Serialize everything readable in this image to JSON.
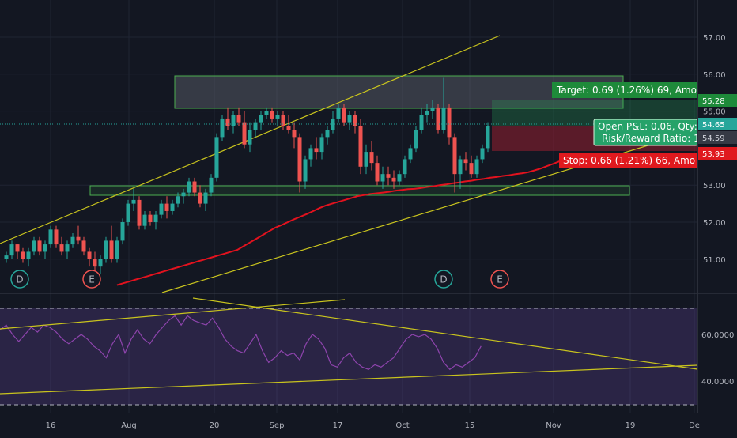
{
  "chart_data": {
    "type": "candlestick",
    "price_axis": {
      "ticks": [
        "57.00",
        "56.00",
        "55.00",
        "53.00",
        "52.00",
        "51.00"
      ],
      "ylim": [
        50.3,
        57.6
      ]
    },
    "time_axis": {
      "ticks": [
        "16",
        "Aug",
        "20",
        "Sep",
        "17",
        "Oct",
        "15",
        "Nov",
        "19",
        "De"
      ]
    },
    "price_labels": {
      "target": "55.28",
      "last": "54.65",
      "entry": "54.59",
      "stop": "53.93"
    },
    "orders": {
      "target_text": "Target: 0.69 (1.26%) 69, Amo",
      "stop_text": "Stop: 0.66 (1.21%) 66, Amo",
      "pnl_line1": "Open P&L: 0.06, Qty:",
      "pnl_line2": "Risk/Reward Ratio: 1."
    },
    "event_markers": [
      "D",
      "E",
      "D",
      "E"
    ],
    "candles": [
      [
        51.0,
        51.2,
        50.9,
        51.1
      ],
      [
        51.1,
        51.5,
        51.0,
        51.4
      ],
      [
        51.4,
        51.4,
        51.0,
        51.2
      ],
      [
        51.2,
        51.3,
        50.9,
        51.0
      ],
      [
        51.0,
        51.3,
        50.8,
        51.2
      ],
      [
        51.2,
        51.6,
        51.1,
        51.5
      ],
      [
        51.5,
        51.6,
        51.1,
        51.2
      ],
      [
        51.2,
        51.5,
        51.0,
        51.4
      ],
      [
        51.4,
        51.9,
        51.3,
        51.8
      ],
      [
        51.8,
        51.9,
        51.3,
        51.4
      ],
      [
        51.4,
        51.6,
        51.1,
        51.2
      ],
      [
        51.2,
        51.5,
        51.0,
        51.4
      ],
      [
        51.4,
        51.7,
        51.3,
        51.6
      ],
      [
        51.6,
        51.9,
        51.4,
        51.5
      ],
      [
        51.5,
        51.6,
        51.1,
        51.2
      ],
      [
        51.2,
        51.3,
        50.8,
        51.0
      ],
      [
        51.0,
        51.2,
        50.7,
        50.8
      ],
      [
        50.8,
        51.1,
        50.6,
        51.0
      ],
      [
        51.0,
        51.6,
        50.9,
        51.5
      ],
      [
        51.5,
        51.9,
        50.9,
        51.0
      ],
      [
        51.0,
        51.6,
        50.9,
        51.5
      ],
      [
        51.5,
        52.1,
        51.4,
        52.0
      ],
      [
        52.0,
        52.6,
        51.9,
        52.5
      ],
      [
        52.5,
        52.9,
        52.3,
        52.6
      ],
      [
        52.6,
        52.7,
        51.8,
        51.9
      ],
      [
        51.9,
        52.3,
        51.8,
        52.2
      ],
      [
        52.2,
        52.3,
        51.9,
        52.0
      ],
      [
        52.0,
        52.3,
        51.8,
        52.2
      ],
      [
        52.2,
        52.6,
        52.1,
        52.5
      ],
      [
        52.5,
        52.7,
        52.1,
        52.3
      ],
      [
        52.3,
        52.6,
        52.2,
        52.5
      ],
      [
        52.5,
        52.8,
        52.4,
        52.7
      ],
      [
        52.7,
        52.9,
        52.5,
        52.8
      ],
      [
        52.8,
        53.2,
        52.7,
        53.1
      ],
      [
        53.1,
        53.2,
        52.7,
        52.8
      ],
      [
        52.8,
        53.0,
        52.4,
        52.5
      ],
      [
        52.5,
        52.9,
        52.3,
        52.8
      ],
      [
        52.8,
        53.3,
        52.7,
        53.2
      ],
      [
        53.2,
        54.4,
        53.1,
        54.3
      ],
      [
        54.3,
        54.9,
        54.2,
        54.8
      ],
      [
        54.8,
        55.1,
        54.5,
        54.6
      ],
      [
        54.6,
        55.0,
        54.4,
        54.9
      ],
      [
        54.9,
        55.1,
        54.6,
        54.7
      ],
      [
        54.7,
        55.0,
        54.0,
        54.1
      ],
      [
        54.1,
        54.7,
        53.9,
        54.5
      ],
      [
        54.5,
        54.8,
        54.3,
        54.7
      ],
      [
        54.7,
        55.0,
        54.5,
        54.9
      ],
      [
        54.9,
        55.1,
        54.8,
        55.0
      ],
      [
        55.0,
        55.1,
        54.7,
        54.8
      ],
      [
        54.8,
        55.0,
        54.6,
        54.9
      ],
      [
        54.9,
        55.0,
        54.5,
        54.6
      ],
      [
        54.6,
        54.9,
        54.4,
        54.5
      ],
      [
        54.5,
        54.7,
        54.0,
        54.3
      ],
      [
        54.3,
        54.4,
        52.8,
        53.1
      ],
      [
        53.1,
        53.8,
        52.9,
        53.7
      ],
      [
        53.7,
        54.1,
        53.5,
        54.0
      ],
      [
        54.0,
        54.3,
        53.7,
        53.9
      ],
      [
        53.9,
        54.4,
        53.7,
        54.3
      ],
      [
        54.3,
        54.6,
        54.1,
        54.5
      ],
      [
        54.5,
        55.0,
        54.4,
        54.8
      ],
      [
        54.8,
        55.2,
        54.7,
        55.1
      ],
      [
        55.1,
        55.2,
        54.6,
        54.7
      ],
      [
        54.7,
        55.0,
        54.5,
        54.9
      ],
      [
        54.9,
        55.0,
        54.4,
        54.6
      ],
      [
        54.6,
        54.8,
        53.3,
        53.5
      ],
      [
        53.5,
        54.1,
        53.3,
        53.9
      ],
      [
        53.9,
        54.2,
        53.4,
        53.6
      ],
      [
        53.6,
        53.8,
        53.0,
        53.1
      ],
      [
        53.1,
        53.5,
        52.9,
        53.3
      ],
      [
        53.3,
        53.5,
        53.0,
        53.2
      ],
      [
        53.2,
        53.4,
        52.9,
        53.1
      ],
      [
        53.1,
        53.4,
        53.0,
        53.3
      ],
      [
        53.3,
        53.8,
        53.2,
        53.7
      ],
      [
        53.7,
        54.1,
        53.6,
        54.0
      ],
      [
        54.0,
        54.6,
        53.9,
        54.5
      ],
      [
        54.5,
        55.1,
        54.4,
        54.9
      ],
      [
        54.9,
        55.2,
        54.7,
        55.0
      ],
      [
        55.0,
        55.3,
        54.8,
        55.1
      ],
      [
        55.1,
        55.2,
        54.4,
        54.5
      ],
      [
        54.5,
        55.9,
        54.4,
        55.1
      ],
      [
        55.1,
        55.2,
        54.1,
        54.3
      ],
      [
        54.3,
        54.4,
        52.8,
        53.3
      ],
      [
        53.3,
        53.8,
        52.9,
        53.7
      ],
      [
        53.7,
        53.9,
        53.4,
        53.6
      ],
      [
        53.6,
        53.8,
        53.2,
        53.3
      ],
      [
        53.3,
        53.8,
        53.2,
        53.7
      ],
      [
        53.7,
        54.1,
        53.6,
        54.0
      ],
      [
        54.0,
        54.7,
        53.9,
        54.6
      ]
    ],
    "ma": [
      50.3,
      50.35,
      50.4,
      50.45,
      50.5,
      50.55,
      50.6,
      50.65,
      50.7,
      50.75,
      50.8,
      50.85,
      50.9,
      50.95,
      51.0,
      51.05,
      51.1,
      51.15,
      51.2,
      51.25,
      51.35,
      51.45,
      51.55,
      51.65,
      51.75,
      51.85,
      51.92,
      52.0,
      52.08,
      52.15,
      52.22,
      52.3,
      52.38,
      52.45,
      52.5,
      52.55,
      52.6,
      52.65,
      52.7,
      52.73,
      52.76,
      52.78,
      52.8,
      52.82,
      52.85,
      52.87,
      52.89,
      52.9,
      52.92,
      52.95,
      52.97,
      53.0,
      53.02,
      53.05,
      53.07,
      53.1,
      53.12,
      53.15,
      53.17,
      53.2,
      53.22,
      53.25,
      53.27,
      53.3,
      53.32,
      53.35,
      53.4,
      53.45,
      53.52,
      53.58,
      53.65,
      53.7,
      53.73
    ],
    "rsi": {
      "ticks": [
        "60.0000",
        "40.0000"
      ],
      "ylim": [
        33,
        78
      ],
      "values": [
        62,
        64,
        60,
        57,
        60,
        63,
        61,
        64,
        63,
        61,
        58,
        56,
        58,
        60,
        58,
        55,
        53,
        50,
        56,
        60,
        52,
        58,
        62,
        58,
        56,
        60,
        63,
        66,
        68,
        64,
        68,
        66,
        65,
        64,
        67,
        63,
        58,
        55,
        53,
        52,
        56,
        60,
        53,
        48,
        50,
        53,
        51,
        52,
        49,
        56,
        60,
        58,
        54,
        47,
        46,
        50,
        52,
        48,
        46,
        45,
        47,
        46,
        48,
        50,
        54,
        58,
        60,
        59,
        60,
        58,
        54,
        48,
        45,
        47,
        46,
        48,
        50,
        55
      ]
    }
  }
}
